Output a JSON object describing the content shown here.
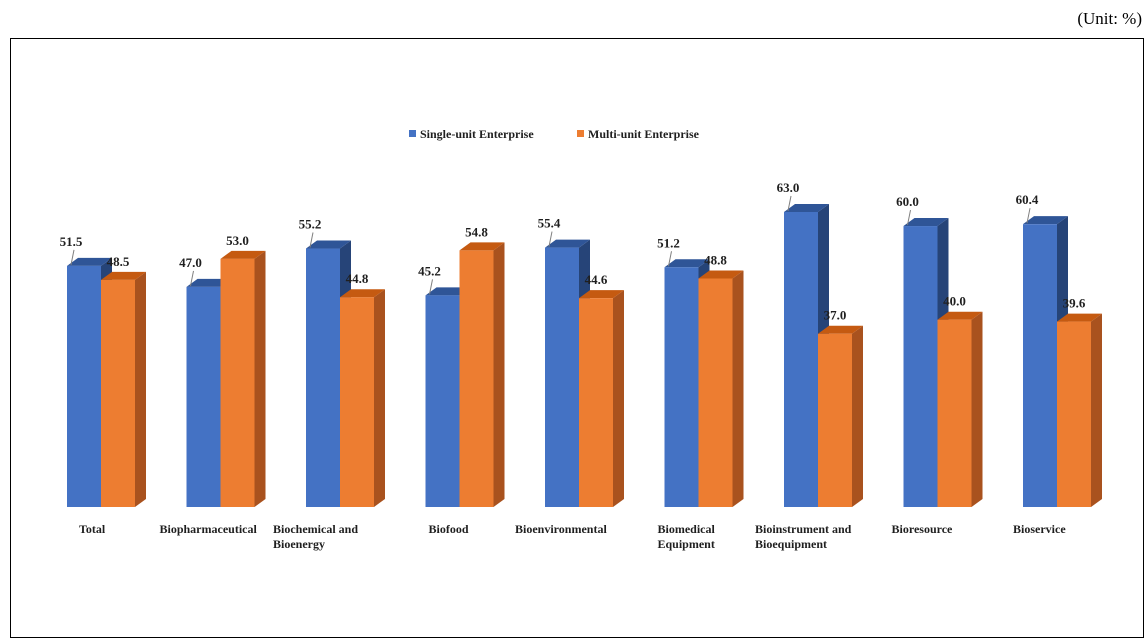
{
  "unit_label": "(Unit: %)",
  "chart_data": {
    "type": "bar",
    "categories": [
      [
        "Total"
      ],
      [
        "Biopharmaceutical"
      ],
      [
        "Biochemical and",
        "Bioenergy"
      ],
      [
        "Biofood"
      ],
      [
        "Bioenvironmental"
      ],
      [
        "Biomedical",
        "Equipment"
      ],
      [
        "Bioinstrument and",
        "Bioequipment"
      ],
      [
        "Bioresource"
      ],
      [
        "Bioservice"
      ]
    ],
    "series": [
      {
        "name": "Single-unit Enterprise",
        "values": [
          51.5,
          47.0,
          55.2,
          45.2,
          55.4,
          51.2,
          63.0,
          60.0,
          60.4
        ],
        "labels": [
          "51.5",
          "47.0",
          "55.2",
          "45.2",
          "55.4",
          "51.2",
          "63.0",
          "60.0",
          "60.4"
        ],
        "color": "#4472C4",
        "top": "#2F5597",
        "side": "#264478"
      },
      {
        "name": "Multi-unit Enterprise",
        "values": [
          48.5,
          53.0,
          44.8,
          54.8,
          44.6,
          48.8,
          37.0,
          40.0,
          39.6
        ],
        "labels": [
          "48.5",
          "53.0",
          "44.8",
          "54.8",
          "44.6",
          "48.8",
          "37.0",
          "40.0",
          "39.6"
        ],
        "color": "#ED7D31",
        "top": "#C55A11",
        "side": "#A9521E"
      }
    ],
    "ylim": [
      0,
      70
    ],
    "legend": "top-center",
    "grid": false,
    "style": "3d-column"
  }
}
